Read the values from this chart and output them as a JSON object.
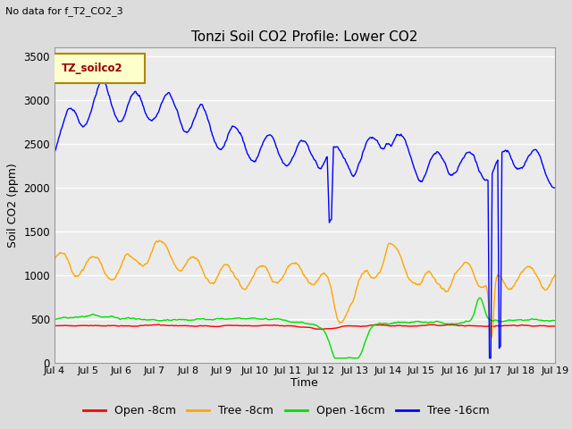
{
  "title": "Tonzi Soil CO2 Profile: Lower CO2",
  "subtitle": "No data for f_T2_CO2_3",
  "legend_label": "TZ_soilco2",
  "ylabel": "Soil CO2 (ppm)",
  "xlabel": "Time",
  "xlim": [
    0,
    15
  ],
  "ylim": [
    0,
    3600
  ],
  "yticks": [
    0,
    500,
    1000,
    1500,
    2000,
    2500,
    3000,
    3500
  ],
  "xtick_labels": [
    "Jul 4",
    "Jul 5",
    "Jul 6",
    "Jul 7",
    "Jul 8",
    "Jul 9",
    "Jul 10",
    "Jul 11",
    "Jul 12",
    "Jul 13",
    "Jul 14",
    "Jul 15",
    "Jul 16",
    "Jul 17",
    "Jul 18",
    "Jul 19"
  ],
  "bg_color": "#dcdcdc",
  "plot_bg_color": "#ebebeb",
  "grid_color": "#ffffff",
  "line_colors": {
    "open_8cm": "#ff0000",
    "tree_8cm": "#ffa500",
    "open_16cm": "#00dd00",
    "tree_16cm": "#0000ff"
  },
  "legend_entries": [
    "Open -8cm",
    "Tree -8cm",
    "Open -16cm",
    "Tree -16cm"
  ]
}
